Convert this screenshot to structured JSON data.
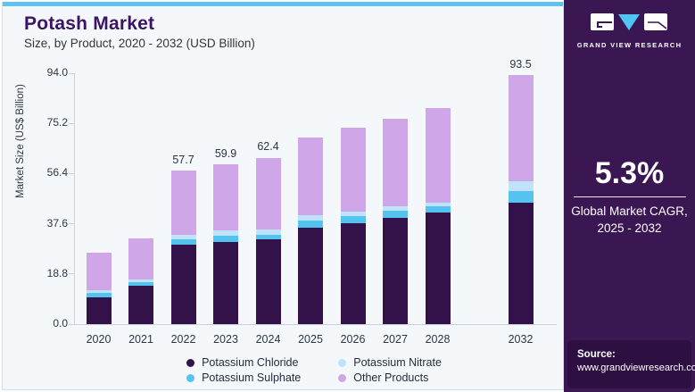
{
  "card": {
    "title": "Potash Market",
    "subtitle": "Size, by Product, 2020 - 2032 (USD Billion)"
  },
  "chart_data": {
    "type": "bar",
    "stacked": true,
    "title": "Potash Market Size, by Product, 2020 - 2032 (USD Billion)",
    "ylabel": "Market Size (US$ Billion)",
    "ylim": [
      0,
      94
    ],
    "yticks": [
      "0.0",
      "18.8",
      "37.6",
      "56.4",
      "75.2",
      "94.0"
    ],
    "grid": false,
    "legend_position": "bottom",
    "categories": [
      "2020",
      "2021",
      "2022",
      "2023",
      "2024",
      "2025",
      "2026",
      "2027",
      "2028",
      "2032"
    ],
    "series": [
      {
        "name": "Potassium Chloride",
        "color": "#331249",
        "values": [
          9.9,
          14.4,
          29.8,
          30.9,
          31.8,
          36.1,
          37.9,
          39.8,
          41.8,
          45.6
        ]
      },
      {
        "name": "Potassium Sulphate",
        "color": "#55c3f0",
        "values": [
          1.7,
          1.3,
          2.1,
          2.3,
          1.7,
          2.8,
          2.5,
          2.8,
          2.2,
          4.3
        ]
      },
      {
        "name": "Potassium Nitrate",
        "color": "#bee3fb",
        "values": [
          1.1,
          0.9,
          1.6,
          1.9,
          2.0,
          1.8,
          1.7,
          1.7,
          1.6,
          3.7
        ]
      },
      {
        "name": "Other Products",
        "color": "#cfa7e9",
        "values": [
          14.0,
          15.4,
          24.2,
          24.8,
          26.9,
          29.3,
          31.4,
          32.8,
          35.3,
          39.9
        ]
      }
    ],
    "totals": [
      26.7,
      32.0,
      57.7,
      59.9,
      62.4,
      70.0,
      73.5,
      77.1,
      80.9,
      93.5
    ],
    "bar_labels": {
      "2022": "57.7",
      "2023": "59.9",
      "2024": "62.4",
      "2032": "93.5"
    },
    "legend": [
      {
        "label": "Potassium Chloride",
        "color": "#331249"
      },
      {
        "label": "Potassium Nitrate",
        "color": "#bee3fb"
      },
      {
        "label": "Potassium Sulphate",
        "color": "#55c3f0"
      },
      {
        "label": "Other Products",
        "color": "#cfa7e9"
      }
    ]
  },
  "sidebar": {
    "brand_name": "GRAND VIEW RESEARCH",
    "cagr_value": "5.3%",
    "cagr_caption_line1": "Global Market CAGR,",
    "cagr_caption_line2": "2025 - 2032",
    "source_label": "Source:",
    "source_url": "www.grandviewresearch.com"
  },
  "colors": {
    "accent_stripe": "#5ec3ef",
    "card_background": "#f4f8fb",
    "title_purple": "#3a1565",
    "sidebar_background": "#3a1653",
    "source_panel_background": "#2d0f42",
    "logo_triangle": "#4ec5f2",
    "axis_line": "#c9d2da"
  }
}
